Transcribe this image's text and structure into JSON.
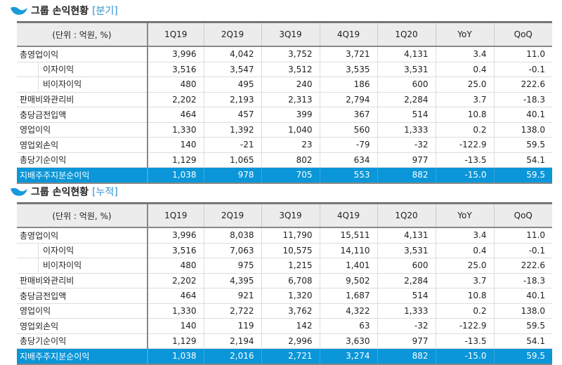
{
  "colors": {
    "accent": "#0a96d8",
    "title_accent": "#2a8fd0"
  },
  "icons": {
    "logo": "wave-logo-icon"
  },
  "columns": [
    "(단위 : 억원, %)",
    "1Q19",
    "2Q19",
    "3Q19",
    "4Q19",
    "1Q20",
    "YoY",
    "QoQ"
  ],
  "tables": [
    {
      "title": "그룹 손익현황",
      "tag": "[분기]",
      "rows": [
        {
          "label": "총영업이익",
          "values": [
            "3,996",
            "4,042",
            "3,752",
            "3,721",
            "4,131",
            "3.4",
            "11.0"
          ]
        },
        {
          "label": "이자이익",
          "values": [
            "3,516",
            "3,547",
            "3,512",
            "3,535",
            "3,531",
            "0.4",
            "-0.1"
          ]
        },
        {
          "label": "비이자이익",
          "values": [
            "480",
            "495",
            "240",
            "186",
            "600",
            "25.0",
            "222.6"
          ]
        },
        {
          "label": "판매비와관리비",
          "values": [
            "2,202",
            "2,193",
            "2,313",
            "2,794",
            "2,284",
            "3.7",
            "-18.3"
          ]
        },
        {
          "label": "충당금전입액",
          "values": [
            "464",
            "457",
            "399",
            "367",
            "514",
            "10.8",
            "40.1"
          ]
        },
        {
          "label": "영업이익",
          "values": [
            "1,330",
            "1,392",
            "1,040",
            "560",
            "1,333",
            "0.2",
            "138.0"
          ]
        },
        {
          "label": "영업외손익",
          "values": [
            "140",
            "-21",
            "23",
            "-79",
            "-32",
            "-122.9",
            "59.5"
          ]
        },
        {
          "label": "총당기순이익",
          "values": [
            "1,129",
            "1,065",
            "802",
            "634",
            "977",
            "-13.5",
            "54.1"
          ]
        },
        {
          "label": "지배주주지분순이익",
          "values": [
            "1,038",
            "978",
            "705",
            "553",
            "882",
            "-15.0",
            "59.5"
          ]
        }
      ]
    },
    {
      "title": "그룹 손익현황",
      "tag": "[누적]",
      "rows": [
        {
          "label": "총영업이익",
          "values": [
            "3,996",
            "8,038",
            "11,790",
            "15,511",
            "4,131",
            "3.4",
            "11.0"
          ]
        },
        {
          "label": "이자이익",
          "values": [
            "3,516",
            "7,063",
            "10,575",
            "14,110",
            "3,531",
            "0.4",
            "-0.1"
          ]
        },
        {
          "label": "비이자이익",
          "values": [
            "480",
            "975",
            "1,215",
            "1,401",
            "600",
            "25.0",
            "222.6"
          ]
        },
        {
          "label": "판매비와관리비",
          "values": [
            "2,202",
            "4,395",
            "6,708",
            "9,502",
            "2,284",
            "3.7",
            "-18.3"
          ]
        },
        {
          "label": "충당금전입액",
          "values": [
            "464",
            "921",
            "1,320",
            "1,687",
            "514",
            "10.8",
            "40.1"
          ]
        },
        {
          "label": "영업이익",
          "values": [
            "1,330",
            "2,722",
            "3,762",
            "4,322",
            "1,333",
            "0.2",
            "138.0"
          ]
        },
        {
          "label": "영업외손익",
          "values": [
            "140",
            "119",
            "142",
            "63",
            "-32",
            "-122.9",
            "59.5"
          ]
        },
        {
          "label": "총당기순이익",
          "values": [
            "1,129",
            "2,194",
            "2,996",
            "3,630",
            "977",
            "-13.5",
            "54.1"
          ]
        },
        {
          "label": "지배주주지분순이익",
          "values": [
            "1,038",
            "2,016",
            "2,721",
            "3,274",
            "882",
            "-15.0",
            "59.5"
          ]
        }
      ]
    }
  ]
}
